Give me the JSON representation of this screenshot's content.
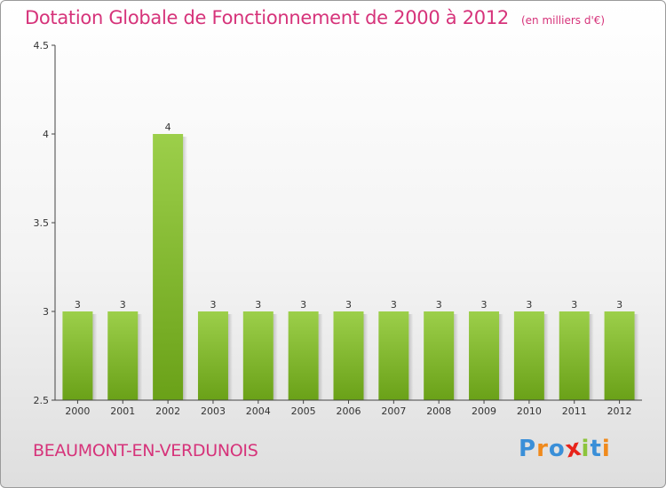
{
  "title": "Dotation Globale de Fonctionnement de 2000 à 2012",
  "unit": "(en milliers d'€)",
  "commune": "BEAUMONT-EN-VERDUNOIS",
  "logo": {
    "text": "Proxiti",
    "letters": [
      {
        "ch": "P",
        "color": "#3a8fd8"
      },
      {
        "ch": "r",
        "color": "#f08a1c"
      },
      {
        "ch": "o",
        "color": "#3a8fd8"
      },
      {
        "ch": "x",
        "color": "#e8231a"
      },
      {
        "ch": "i",
        "color": "#8cc43c"
      },
      {
        "ch": "t",
        "color": "#3a8fd8"
      },
      {
        "ch": "i",
        "color": "#f08a1c"
      }
    ]
  },
  "colors": {
    "title": "#d6337a",
    "bar_top": "#9ccf4a",
    "bar_bottom": "#6aa118",
    "axis": "#444444"
  },
  "chart_data": {
    "type": "bar",
    "categories": [
      "2000",
      "2001",
      "2002",
      "2003",
      "2004",
      "2005",
      "2006",
      "2007",
      "2008",
      "2009",
      "2010",
      "2011",
      "2012"
    ],
    "values": [
      3,
      3,
      4,
      3,
      3,
      3,
      3,
      3,
      3,
      3,
      3,
      3,
      3
    ],
    "data_labels": [
      "3",
      "3",
      "4",
      "3",
      "3",
      "3",
      "3",
      "3",
      "3",
      "3",
      "3",
      "3",
      "3"
    ],
    "ylim": [
      2.5,
      4.5
    ],
    "yticks": [
      2.5,
      3,
      3.5,
      4,
      4.5
    ],
    "ytick_labels": [
      "2.5",
      "3",
      "3.5",
      "4",
      "4.5"
    ],
    "xlabel": "",
    "ylabel": "",
    "grid": false,
    "legend": "none"
  }
}
